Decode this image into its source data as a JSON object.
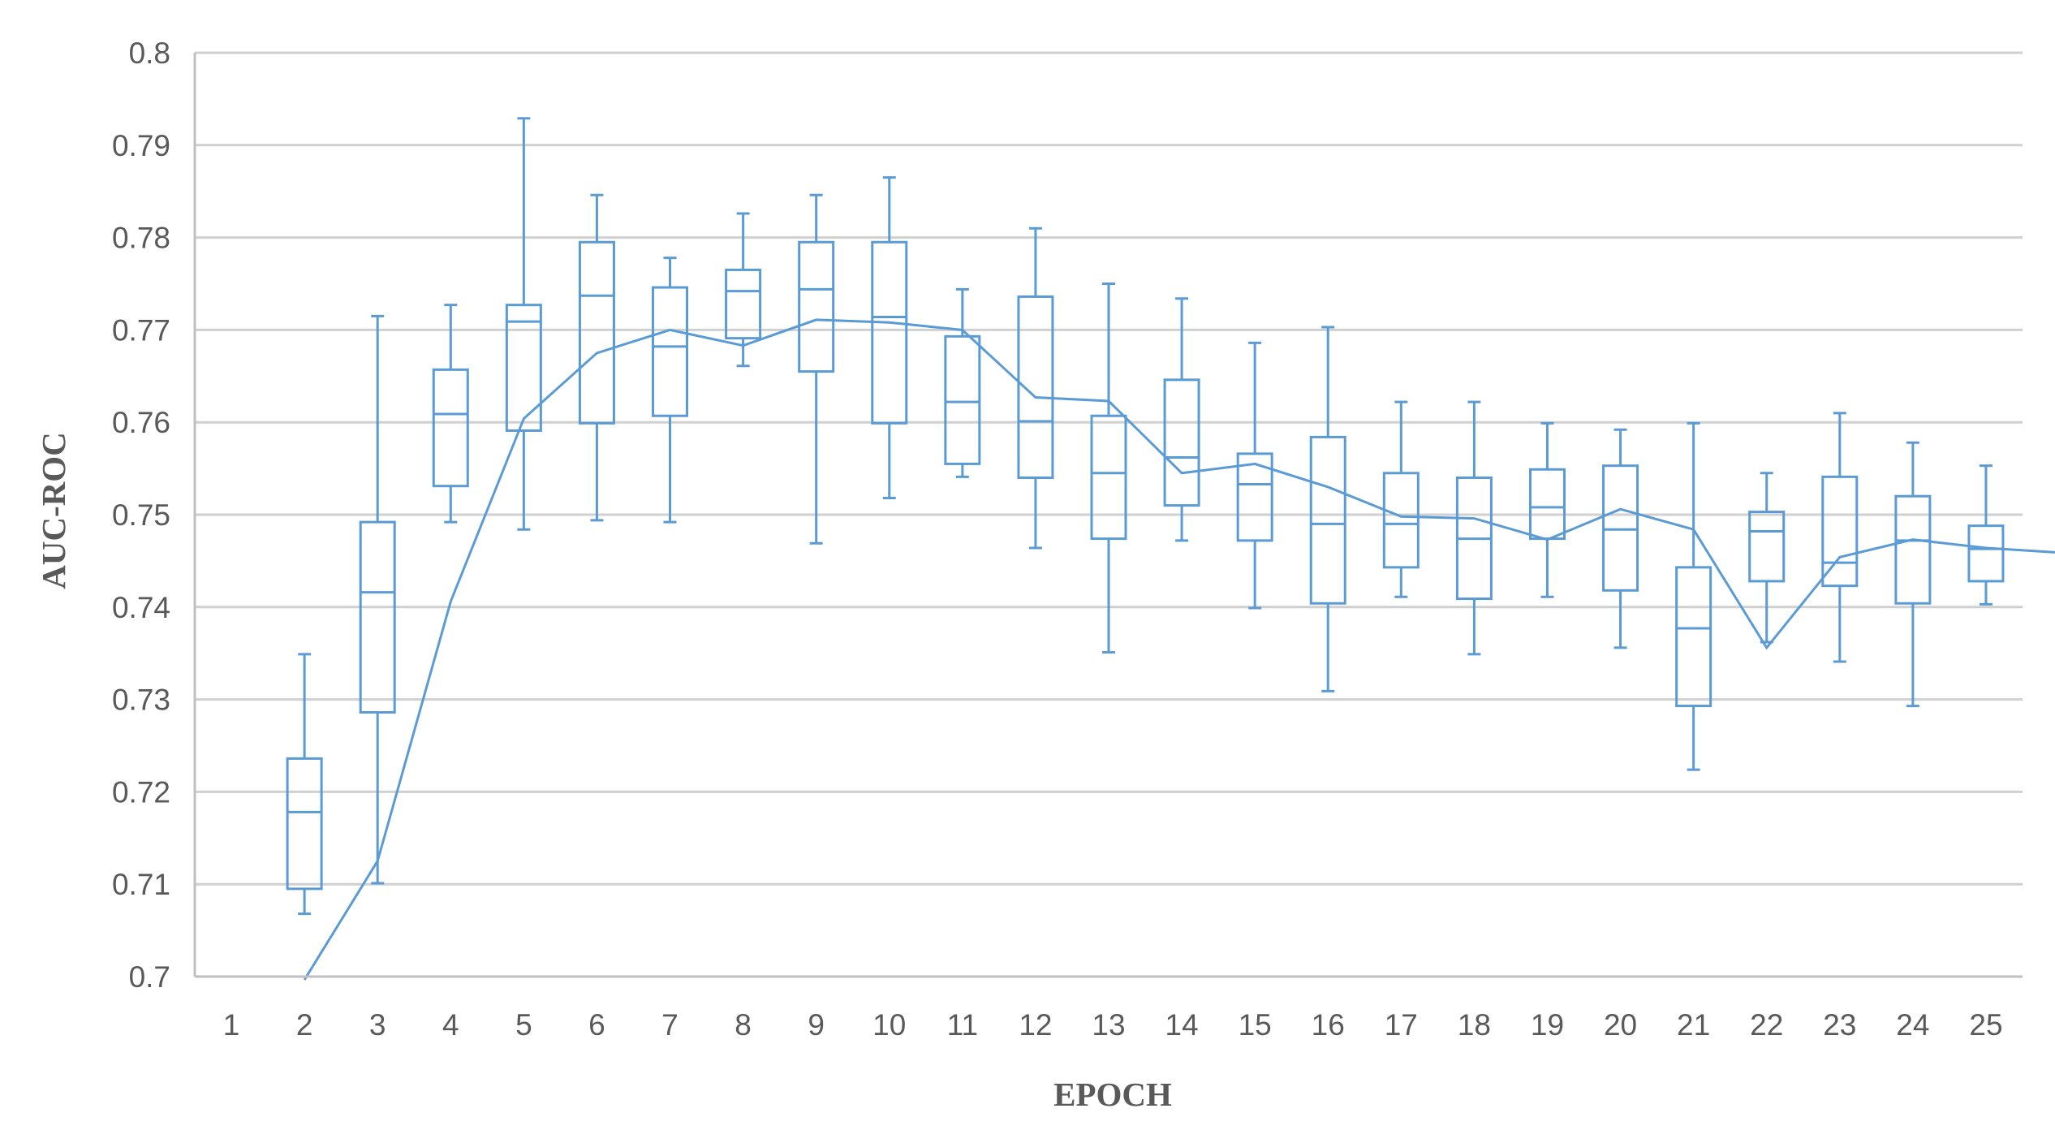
{
  "colors": {
    "series": "#5b9bd5",
    "grid": "#d0d0d0",
    "text": "#595959"
  },
  "chart_data": {
    "type": "boxplot",
    "title": "",
    "xlabel": "EPOCH",
    "ylabel": "AUC-ROC",
    "ylim": [
      0.7,
      0.8
    ],
    "yticks": [
      "0.7",
      "0.71",
      "0.72",
      "0.73",
      "0.74",
      "0.75",
      "0.76",
      "0.77",
      "0.78",
      "0.79",
      "0.8"
    ],
    "categories": [
      "1",
      "2",
      "3",
      "4",
      "5",
      "6",
      "7",
      "8",
      "9",
      "10",
      "11",
      "12",
      "13",
      "14",
      "15",
      "16",
      "17",
      "18",
      "19",
      "20",
      "21",
      "22",
      "23",
      "24",
      "25"
    ],
    "grid": true,
    "legend": "none",
    "boxes": [
      null,
      {
        "min": 0.7068,
        "q1": 0.7095,
        "median": 0.7178,
        "q3": 0.7236,
        "max": 0.7349
      },
      {
        "min": 0.7101,
        "q1": 0.7286,
        "median": 0.7416,
        "q3": 0.7492,
        "max": 0.7715
      },
      {
        "min": 0.7492,
        "q1": 0.7531,
        "median": 0.7609,
        "q3": 0.7657,
        "max": 0.7727
      },
      {
        "min": 0.7484,
        "q1": 0.7591,
        "median": 0.7709,
        "q3": 0.7727,
        "max": 0.7929
      },
      {
        "min": 0.7494,
        "q1": 0.7599,
        "median": 0.7737,
        "q3": 0.7795,
        "max": 0.7846
      },
      {
        "min": 0.7492,
        "q1": 0.7607,
        "median": 0.7682,
        "q3": 0.7746,
        "max": 0.7778
      },
      {
        "min": 0.7661,
        "q1": 0.7691,
        "median": 0.7742,
        "q3": 0.7765,
        "max": 0.7826
      },
      {
        "min": 0.7469,
        "q1": 0.7655,
        "median": 0.7744,
        "q3": 0.7795,
        "max": 0.7846
      },
      {
        "min": 0.7518,
        "q1": 0.7599,
        "median": 0.7714,
        "q3": 0.7795,
        "max": 0.7865
      },
      {
        "min": 0.7541,
        "q1": 0.7555,
        "median": 0.7622,
        "q3": 0.7693,
        "max": 0.7744
      },
      {
        "min": 0.7464,
        "q1": 0.754,
        "median": 0.7601,
        "q3": 0.7736,
        "max": 0.781
      },
      {
        "min": 0.7351,
        "q1": 0.7474,
        "median": 0.7545,
        "q3": 0.7607,
        "max": 0.775
      },
      {
        "min": 0.7472,
        "q1": 0.751,
        "median": 0.7562,
        "q3": 0.7646,
        "max": 0.7734
      },
      {
        "min": 0.7399,
        "q1": 0.7472,
        "median": 0.7533,
        "q3": 0.7566,
        "max": 0.7686
      },
      {
        "min": 0.7309,
        "q1": 0.7404,
        "median": 0.749,
        "q3": 0.7584,
        "max": 0.7703
      },
      {
        "min": 0.7411,
        "q1": 0.7443,
        "median": 0.749,
        "q3": 0.7545,
        "max": 0.7622
      },
      {
        "min": 0.7349,
        "q1": 0.7409,
        "median": 0.7474,
        "q3": 0.754,
        "max": 0.7622
      },
      {
        "min": 0.7411,
        "q1": 0.7474,
        "median": 0.7508,
        "q3": 0.7549,
        "max": 0.7599
      },
      {
        "min": 0.7356,
        "q1": 0.7418,
        "median": 0.7484,
        "q3": 0.7553,
        "max": 0.7592
      },
      {
        "min": 0.7224,
        "q1": 0.7293,
        "median": 0.7377,
        "q3": 0.7443,
        "max": 0.7599
      },
      {
        "min": 0.7362,
        "q1": 0.7428,
        "median": 0.7482,
        "q3": 0.7503,
        "max": 0.7545
      },
      {
        "min": 0.7341,
        "q1": 0.7423,
        "median": 0.7448,
        "q3": 0.7541,
        "max": 0.761
      },
      {
        "min": 0.7293,
        "q1": 0.7404,
        "median": 0.7472,
        "q3": 0.752,
        "max": 0.7578
      },
      {
        "min": 0.7403,
        "q1": 0.7428,
        "median": 0.7463,
        "q3": 0.7488,
        "max": 0.7553
      }
    ],
    "mean_line": [
      0.6995,
      0.7125,
      0.7406,
      0.7604,
      0.7675,
      0.77,
      0.7683,
      0.7711,
      0.7708,
      0.77,
      0.7627,
      0.7623,
      0.7545,
      0.7555,
      0.753,
      0.7498,
      0.7496,
      0.7473,
      0.7506,
      0.7484,
      0.7356,
      0.7454,
      0.7473,
      0.7464,
      0.7459
    ]
  }
}
